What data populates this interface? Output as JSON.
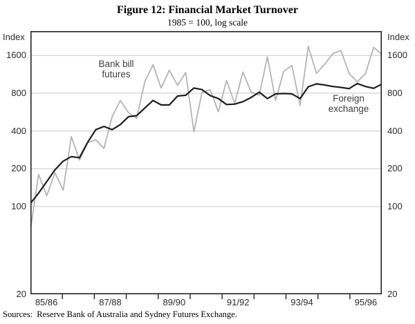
{
  "title": "Figure 12: Financial Market Turnover",
  "subtitle": "1985 = 100, log scale",
  "axis": {
    "left_unit": "Index",
    "right_unit": "Index",
    "ytick_labels": [
      "1600",
      "800",
      "400",
      "200",
      "100",
      "20"
    ],
    "ytick_values": [
      1600,
      800,
      400,
      200,
      100,
      20
    ],
    "xtick_labels": [
      "85/86",
      "87/88",
      "89/90",
      "91/92",
      "93/94",
      "95/96"
    ]
  },
  "source_note": "Sources:  Reserve Bank of Australia and Sydney Futures Exchange.",
  "chart_data": {
    "type": "line",
    "yscale": "log",
    "ylim": [
      20,
      2500
    ],
    "gridlines": [
      100,
      200,
      400,
      800,
      1600
    ],
    "grid_color": "#c8c8c8",
    "frame_color": "#222222",
    "years": 11,
    "x_note": "quarterly observations, financial years 1985/86 to 1995/96",
    "categories": [
      "1985Q3",
      "1985Q4",
      "1986Q1",
      "1986Q2",
      "1986Q3",
      "1986Q4",
      "1987Q1",
      "1987Q2",
      "1987Q3",
      "1987Q4",
      "1988Q1",
      "1988Q2",
      "1988Q3",
      "1988Q4",
      "1989Q1",
      "1989Q2",
      "1989Q3",
      "1989Q4",
      "1990Q1",
      "1990Q2",
      "1990Q3",
      "1990Q4",
      "1991Q1",
      "1991Q2",
      "1991Q3",
      "1991Q4",
      "1992Q1",
      "1992Q2",
      "1992Q3",
      "1992Q4",
      "1993Q1",
      "1993Q2",
      "1993Q3",
      "1993Q4",
      "1994Q1",
      "1994Q2",
      "1994Q3",
      "1994Q4",
      "1995Q1",
      "1995Q2",
      "1995Q3",
      "1995Q4",
      "1996Q1",
      "1996Q2"
    ],
    "series": [
      {
        "name": "Bank bill futures",
        "color": "#b3b3b3",
        "width": 1.8,
        "values": [
          65,
          180,
          122,
          186,
          135,
          360,
          235,
          323,
          340,
          290,
          520,
          700,
          560,
          505,
          990,
          1350,
          880,
          1220,
          925,
          1170,
          395,
          815,
          850,
          570,
          1010,
          665,
          1180,
          820,
          770,
          1560,
          700,
          1195,
          1330,
          640,
          1890,
          1150,
          1360,
          1650,
          1750,
          1150,
          985,
          1150,
          1855,
          1630
        ]
      },
      {
        "name": "Foreign exchange",
        "color": "#1c1c1c",
        "width": 2.2,
        "values": [
          106,
          128,
          158,
          196,
          230,
          250,
          245,
          325,
          410,
          435,
          410,
          450,
          520,
          530,
          610,
          700,
          645,
          645,
          760,
          770,
          880,
          855,
          765,
          725,
          650,
          655,
          685,
          740,
          815,
          725,
          790,
          795,
          790,
          725,
          900,
          950,
          930,
          905,
          890,
          870,
          955,
          905,
          875,
          945
        ]
      }
    ],
    "annotations": [
      {
        "series": "Bank bill futures",
        "line1": "Bank bill",
        "line2": "futures"
      },
      {
        "series": "Foreign exchange",
        "line1": "Foreign",
        "line2": "exchange"
      }
    ]
  }
}
